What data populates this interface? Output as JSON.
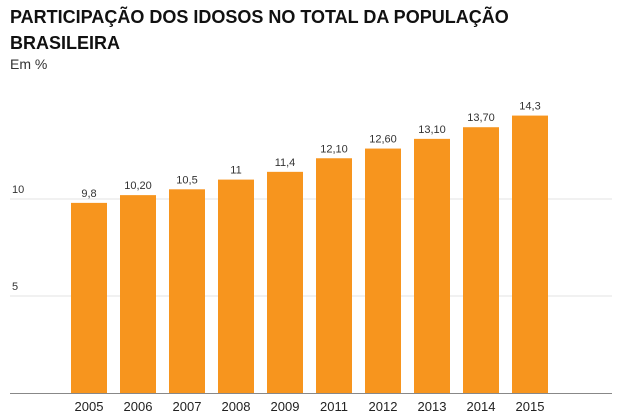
{
  "chart_data": {
    "type": "bar",
    "title": "PARTICIPAÇÃO DOS IDOSOS NO TOTAL DA POPULAÇÃO BRASILEIRA",
    "subtitle": "Em %",
    "xlabel": "",
    "ylabel": "",
    "categories": [
      "2005",
      "2006",
      "2007",
      "2008",
      "2009",
      "2011",
      "2012",
      "2013",
      "2014",
      "2015"
    ],
    "values": [
      9.8,
      10.2,
      10.5,
      11,
      11.4,
      12.1,
      12.6,
      13.1,
      13.7,
      14.3
    ],
    "data_labels": [
      "9,8",
      "10,20",
      "10,5",
      "11",
      "11,4",
      "12,10",
      "12,60",
      "13,10",
      "13,70",
      "14,3"
    ],
    "ylim": [
      0,
      15
    ],
    "yticks": [
      5,
      10
    ],
    "ytick_labels": [
      "5",
      "10"
    ],
    "grid": true,
    "legend": "none",
    "bar_color": "#F7951E",
    "grid_color": "#e3e3e3",
    "axis_color": "#888888"
  }
}
